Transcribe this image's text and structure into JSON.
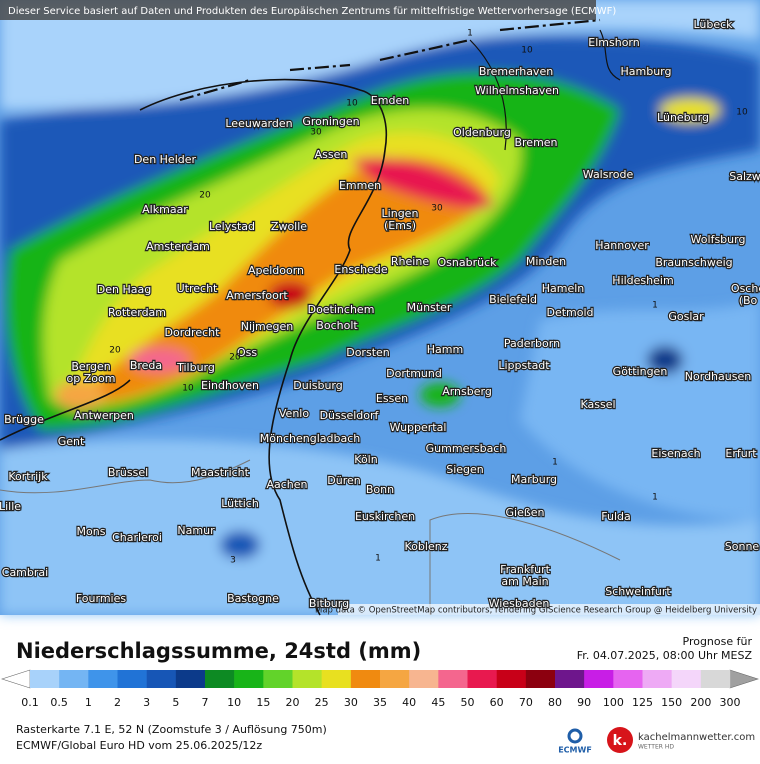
{
  "header": {
    "notice": "Dieser Service basiert auf Daten und Produkten des Europäischen Zentrums für mittelfristige Wettervorhersage (ECMWF)",
    "attribution": "Map data © OpenStreetMap contributors, rendering GIScience Research Group @ Heidelberg University"
  },
  "map": {
    "cities": [
      [
        "Lübeck"
      ],
      [
        "Elmshorn"
      ],
      [
        "Hamburg"
      ],
      [
        "Bremerhaven"
      ],
      [
        "Wilhelmshaven"
      ],
      [
        "Emden"
      ],
      [
        "Lüneburg"
      ],
      [
        "Leeuwarden"
      ],
      [
        "Groningen"
      ],
      [
        "Oldenburg"
      ],
      [
        "Bremen"
      ],
      [
        "Assen"
      ],
      [
        "Den Helder"
      ],
      [
        "Walsrode"
      ],
      [
        "Salzw"
      ],
      [
        "Emmen"
      ],
      [
        "Alkmaar"
      ],
      [
        "Lingen",
        "(Ems)"
      ],
      [
        "Lelystad"
      ],
      [
        "Zwolle"
      ],
      [
        "Amsterdam"
      ],
      [
        "Hannover"
      ],
      [
        "Wolfsburg"
      ],
      [
        "Rheine"
      ],
      [
        "Osnabrück"
      ],
      [
        "Minden"
      ],
      [
        "Enschede"
      ],
      [
        "Apeldoorn"
      ],
      [
        "Braunschweig"
      ],
      [
        "Hildesheim"
      ],
      [
        "Hameln"
      ],
      [
        "Den Haag"
      ],
      [
        "Utrecht"
      ],
      [
        "Amersfoort"
      ],
      [
        "Bielefeld"
      ],
      [
        "Osche",
        "(Bo"
      ],
      [
        "Goslar"
      ],
      [
        "Doetinchem"
      ],
      [
        "Münster"
      ],
      [
        "Detmold"
      ],
      [
        "Rotterdam"
      ],
      [
        "Nijmegen"
      ],
      [
        "Bocholt"
      ],
      [
        "Dordrecht"
      ],
      [
        "Paderborn"
      ],
      [
        "Hamm"
      ],
      [
        "Dorsten"
      ],
      [
        "Oss"
      ],
      [
        "Lippstadt"
      ],
      [
        "Breda"
      ],
      [
        "Tilburg"
      ],
      [
        "Bergen",
        "op Zoom"
      ],
      [
        "Göttingen"
      ],
      [
        "Nordhausen"
      ],
      [
        "Dortmund"
      ],
      [
        "Eindhoven"
      ],
      [
        "Duisburg"
      ],
      [
        "Arnsberg"
      ],
      [
        "Essen"
      ],
      [
        "Kassel"
      ],
      [
        "Venlo"
      ],
      [
        "Düsseldorf"
      ],
      [
        "Brügge"
      ],
      [
        "Antwerpen"
      ],
      [
        "Wuppertal"
      ],
      [
        "Gent"
      ],
      [
        "Mönchengladbach"
      ],
      [
        "Gummersbach"
      ],
      [
        "Eisenach"
      ],
      [
        "Erfurt"
      ],
      [
        "Köln"
      ],
      [
        "Brüssel"
      ],
      [
        "Siegen"
      ],
      [
        "Kortrijk"
      ],
      [
        "Maastricht"
      ],
      [
        "Marburg"
      ],
      [
        "Aachen"
      ],
      [
        "Düren"
      ],
      [
        "Bonn"
      ],
      [
        "Lüttich"
      ],
      [
        "Lille"
      ],
      [
        "Gießen"
      ],
      [
        "Euskirchen"
      ],
      [
        "Fulda"
      ],
      [
        "Mons"
      ],
      [
        "Charleroi"
      ],
      [
        "Namur"
      ],
      [
        "Koblenz"
      ],
      [
        "Sonne"
      ],
      [
        "Cambrai"
      ],
      [
        "Frankfurt",
        "am Main"
      ],
      [
        "Schweinfurt"
      ],
      [
        "Fourmies"
      ],
      [
        "Bastogne"
      ],
      [
        "Bitburg"
      ],
      [
        "Wiesbaden"
      ]
    ],
    "contour_labels": [
      "1",
      "10",
      "10",
      "30",
      "20",
      "30",
      "10",
      "20",
      "20",
      "10",
      "1",
      "1",
      "1",
      "1",
      "3"
    ]
  },
  "legend": {
    "title": "Niederschlagssumme, 24std (mm)",
    "labels": [
      0.1,
      0.5,
      1,
      2,
      3,
      5,
      7,
      10,
      15,
      20,
      25,
      30,
      35,
      40,
      45,
      50,
      60,
      70,
      80,
      90,
      100,
      125,
      150,
      200,
      300
    ],
    "colors": [
      "#a8d2fa",
      "#74b5f3",
      "#3f94ea",
      "#2173d6",
      "#1756b6",
      "#0c3a8a",
      "#0d8a23",
      "#18b418",
      "#62d32a",
      "#b4e32a",
      "#e8e020",
      "#f08a10",
      "#f5a642",
      "#f7b590",
      "#f4668e",
      "#e8194f",
      "#c80018",
      "#8c000f",
      "#6e168c",
      "#c81ee6",
      "#e664f0",
      "#eeaaf5",
      "#f4d6fa",
      "#d8d8d8"
    ],
    "below_color": "#ffffff",
    "above_color": "#a0a0a0"
  },
  "forecast": {
    "label": "Prognose für",
    "time": "Fr. 04.07.2025, 08:00 Uhr MESZ"
  },
  "footer": {
    "line1": "Rasterkarte 7.1 E, 52 N  (Zoomstufe 3 / Auflösung 750m)",
    "line2": "ECMWF/Global Euro HD vom  25.06.2025/12z",
    "ecmwf": "ECMWF",
    "site": "kachelmannwetter.com",
    "site_sub": "WETTER HD"
  }
}
